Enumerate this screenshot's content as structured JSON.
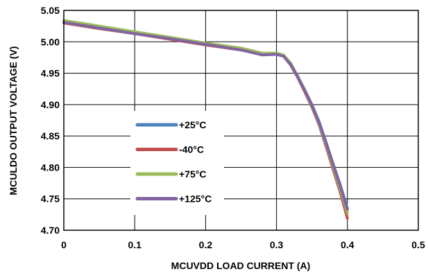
{
  "chart_data": {
    "type": "line",
    "title": "",
    "xlabel": "MCUVDD LOAD CURRENT (A)",
    "ylabel": "MCULDO OUTPUT VOLTAGE (V)",
    "xlim": [
      0,
      0.5
    ],
    "ylim": [
      4.7,
      5.05
    ],
    "x_ticks": [
      "0",
      "0.1",
      "0.2",
      "0.3",
      "0.4",
      "0.5"
    ],
    "y_ticks": [
      "4.70",
      "4.75",
      "4.80",
      "4.85",
      "4.90",
      "4.95",
      "5.00",
      "5.05"
    ],
    "grid": true,
    "legend_position": "left-center",
    "series": [
      {
        "name": "+25°C",
        "color": "#4f81bd",
        "x": [
          0,
          0.05,
          0.1,
          0.15,
          0.2,
          0.25,
          0.28,
          0.3,
          0.31,
          0.32,
          0.33,
          0.34,
          0.35,
          0.36,
          0.37,
          0.38,
          0.39,
          0.4
        ],
        "y": [
          5.031,
          5.022,
          5.014,
          5.005,
          4.996,
          4.988,
          4.981,
          4.981,
          4.978,
          4.965,
          4.945,
          4.923,
          4.9,
          4.873,
          4.84,
          4.805,
          4.772,
          4.735
        ]
      },
      {
        "name": "-40°C",
        "color": "#c0504d",
        "x": [
          0,
          0.05,
          0.1,
          0.15,
          0.2,
          0.25,
          0.28,
          0.3,
          0.31,
          0.32,
          0.33,
          0.34,
          0.35,
          0.36,
          0.37,
          0.38,
          0.39,
          0.4
        ],
        "y": [
          5.03,
          5.021,
          5.013,
          5.004,
          4.995,
          4.987,
          4.98,
          4.98,
          4.977,
          4.963,
          4.943,
          4.92,
          4.896,
          4.868,
          4.833,
          4.796,
          4.76,
          4.719
        ]
      },
      {
        "name": "+75°C",
        "color": "#9bbb59",
        "x": [
          0,
          0.05,
          0.1,
          0.15,
          0.2,
          0.25,
          0.28,
          0.3,
          0.31,
          0.32,
          0.33,
          0.34,
          0.35,
          0.36,
          0.37,
          0.38,
          0.39,
          0.4
        ],
        "y": [
          5.034,
          5.025,
          5.016,
          5.007,
          4.998,
          4.99,
          4.982,
          4.982,
          4.979,
          4.966,
          4.945,
          4.922,
          4.898,
          4.87,
          4.836,
          4.8,
          4.765,
          4.727
        ]
      },
      {
        "name": "+125°C",
        "color": "#8064a2",
        "x": [
          0,
          0.05,
          0.1,
          0.15,
          0.2,
          0.25,
          0.28,
          0.3,
          0.31,
          0.32,
          0.33,
          0.34,
          0.35,
          0.36,
          0.37,
          0.38,
          0.39,
          0.4
        ],
        "y": [
          5.031,
          5.022,
          5.013,
          5.005,
          4.996,
          4.987,
          4.979,
          4.98,
          4.977,
          4.964,
          4.944,
          4.922,
          4.899,
          4.872,
          4.839,
          4.804,
          4.77,
          4.733
        ]
      }
    ]
  }
}
